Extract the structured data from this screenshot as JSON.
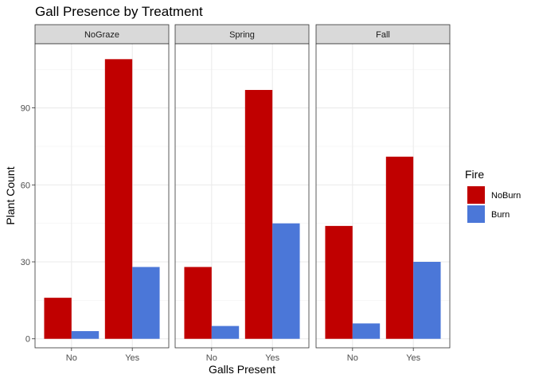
{
  "chart_data": {
    "type": "bar",
    "title": "Gall Presence by Treatment",
    "xlabel": "Galls Present",
    "ylabel": "Plant Count",
    "ylim": [
      -3.5,
      115
    ],
    "yticks": [
      0,
      30,
      60,
      90
    ],
    "categories": [
      "No",
      "Yes"
    ],
    "legend": {
      "title": "Fire",
      "position": "right"
    },
    "grid": true,
    "series_colors": {
      "NoBurn": "#c00000",
      "Burn": "#4b77d8"
    },
    "panels": [
      {
        "strip": "NoGraze",
        "series": [
          {
            "name": "NoBurn",
            "values": [
              16,
              109
            ]
          },
          {
            "name": "Burn",
            "values": [
              3,
              28
            ]
          }
        ]
      },
      {
        "strip": "Spring",
        "series": [
          {
            "name": "NoBurn",
            "values": [
              28,
              97
            ]
          },
          {
            "name": "Burn",
            "values": [
              5,
              45
            ]
          }
        ]
      },
      {
        "strip": "Fall",
        "series": [
          {
            "name": "NoBurn",
            "values": [
              44,
              71
            ]
          },
          {
            "name": "Burn",
            "values": [
              6,
              30
            ]
          }
        ]
      }
    ]
  }
}
